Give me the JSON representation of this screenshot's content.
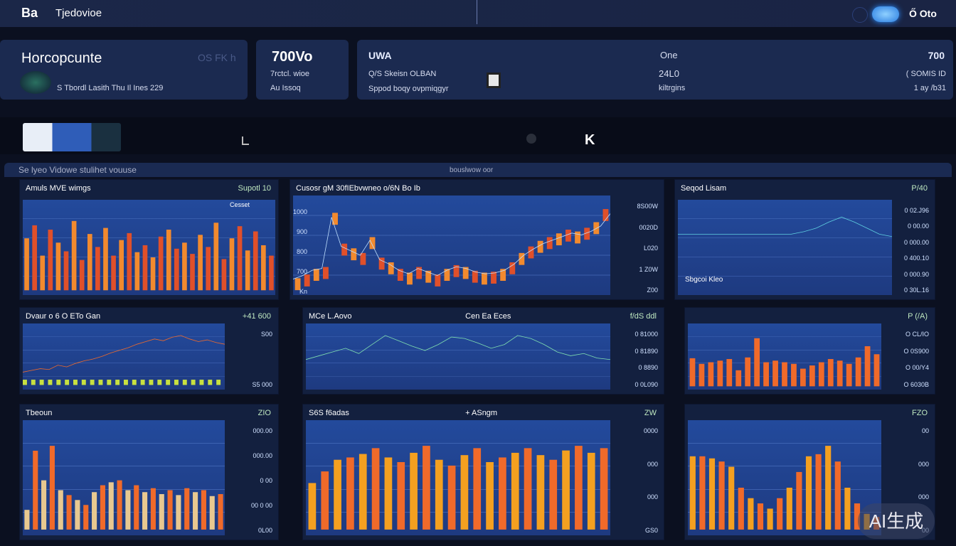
{
  "header": {
    "logo": "Ba",
    "title": "Tjedovioe",
    "user": "Ő Oto"
  },
  "stats": [
    {
      "title": "Horcopcunte",
      "aux": "OS FK h",
      "sub": "S Tbordl Lasith Thu Il Ines  229"
    },
    {
      "value": "700Vo",
      "line1": "7rctcl. wioe",
      "line2": "Au Issoq"
    },
    {
      "value": "UWA",
      "line1": "Q/S Skeisn OLBAN",
      "line2": "Sppod boqy ovpmiqgyr",
      "mid_title": "One",
      "mid_value": "24L0",
      "mid_sub": "kiltrgins",
      "right_value": "700",
      "right_line1": "( SOMIS ID",
      "right_line2": "1 ay /b31"
    }
  ],
  "strip": {
    "letter": "K"
  },
  "section": {
    "left": "Se lyeo Vidowe stulihet vouuse",
    "center": "bouslwow oor"
  },
  "chart_data": [
    {
      "type": "bar",
      "title": "Amuls MVE wimgs",
      "badge": "Supotl 10",
      "legend": "Cesset",
      "colors": [
        "#f28a2e",
        "#e0502a"
      ],
      "values": [
        60,
        75,
        40,
        70,
        55,
        45,
        80,
        35,
        65,
        50,
        72,
        40,
        58,
        66,
        44,
        52,
        38,
        62,
        70,
        48,
        55,
        42,
        64,
        50,
        78,
        36,
        60,
        74,
        46,
        68,
        52,
        40
      ]
    },
    {
      "type": "candlestick",
      "title": "Cusosr gM 30fIEbvwneo o/6N Bo Ib",
      "yticks": [
        "1000",
        "900",
        "800",
        "700",
        "Kn"
      ],
      "right_ticks": [
        "8S00W",
        "0020D",
        "L020",
        "1 Z0W",
        "Z00"
      ],
      "values": [
        18,
        22,
        28,
        30,
        88,
        55,
        50,
        45,
        62,
        40,
        35,
        28,
        24,
        30,
        26,
        22,
        28,
        32,
        30,
        26,
        24,
        25,
        28,
        35,
        45,
        52,
        58,
        62,
        66,
        70,
        68,
        72,
        78,
        92
      ]
    },
    {
      "type": "line",
      "title": "Seqod Lisam",
      "footer": "Sbgcoi Kleo",
      "badge": "P/40",
      "right_ticks": [
        "0 02.J96",
        "0 00.00",
        "0 000.00",
        "0 400.10",
        "0 000.90",
        "0 30L.16"
      ],
      "colors": [
        "#5fd0e0"
      ],
      "values": [
        50,
        50,
        50,
        50,
        50,
        50,
        50,
        50,
        50,
        50,
        52,
        55,
        60,
        64,
        60,
        55,
        50,
        48
      ]
    },
    {
      "type": "area",
      "title": "Dvaur o 6 O ETo Gan",
      "badge": "+41 600",
      "right_ticks": [
        "S00",
        "S5 000"
      ],
      "colors": [
        "#f06a2a",
        "#c8e040"
      ],
      "values": [
        20,
        22,
        24,
        23,
        28,
        26,
        30,
        33,
        35,
        38,
        42,
        45,
        48,
        52,
        55,
        58,
        56,
        60,
        62,
        58,
        55,
        57,
        54,
        52
      ]
    },
    {
      "type": "line",
      "title": "MCe L.Aovo",
      "subtitle": "Cen Ea Eces",
      "badge": "f/dS ddl",
      "right_ticks": [
        "0 81000",
        "0 81890",
        "0 8890",
        "0 0L090"
      ],
      "colors": [
        "#80e0b0",
        "#e8f0ff"
      ],
      "values": [
        40,
        45,
        50,
        55,
        48,
        60,
        72,
        65,
        58,
        52,
        60,
        70,
        68,
        62,
        55,
        60,
        72,
        68,
        60,
        50,
        45,
        48,
        42,
        40
      ]
    },
    {
      "type": "bar",
      "title": "",
      "badge": "P (/A)",
      "right_ticks": [
        "O CL/IO",
        "O 0S900",
        "O 00/Y4",
        "O 6030B"
      ],
      "colors": [
        "#f06a2a"
      ],
      "values": [
        35,
        28,
        30,
        32,
        34,
        20,
        36,
        60,
        30,
        32,
        30,
        28,
        22,
        26,
        30,
        34,
        32,
        28,
        36,
        50,
        40
      ]
    },
    {
      "type": "bar",
      "title": "Tbeoun",
      "badge": "ZIO",
      "right_ticks": [
        "000.00",
        "000.00",
        "0 00",
        "00 0 00",
        "0L00"
      ],
      "colors": [
        "#e8c890",
        "#f06a2a"
      ],
      "values": [
        20,
        80,
        50,
        85,
        40,
        35,
        30,
        25,
        38,
        45,
        48,
        50,
        40,
        45,
        38,
        42,
        36,
        40,
        35,
        42,
        38,
        40,
        34,
        36
      ]
    },
    {
      "type": "bar",
      "title": "S6S f6adas",
      "subtitle": "+ ASngm",
      "badge": "ZW",
      "right_ticks": [
        "0000",
        "000",
        "000",
        "GS0"
      ],
      "colors": [
        "#f4a020",
        "#f06a2a"
      ],
      "values": [
        40,
        50,
        60,
        62,
        65,
        70,
        62,
        58,
        66,
        72,
        60,
        55,
        64,
        70,
        58,
        62,
        66,
        70,
        64,
        60,
        68,
        72,
        66,
        70
      ]
    },
    {
      "type": "bar",
      "title": "",
      "badge": "FZO",
      "right_ticks": [
        "00",
        "000",
        "000",
        "00"
      ],
      "colors": [
        "#f4a020",
        "#f06a2a"
      ],
      "values": [
        70,
        70,
        68,
        65,
        60,
        40,
        30,
        25,
        20,
        30,
        40,
        55,
        70,
        72,
        80,
        65,
        40,
        25,
        15,
        12
      ]
    }
  ]
}
